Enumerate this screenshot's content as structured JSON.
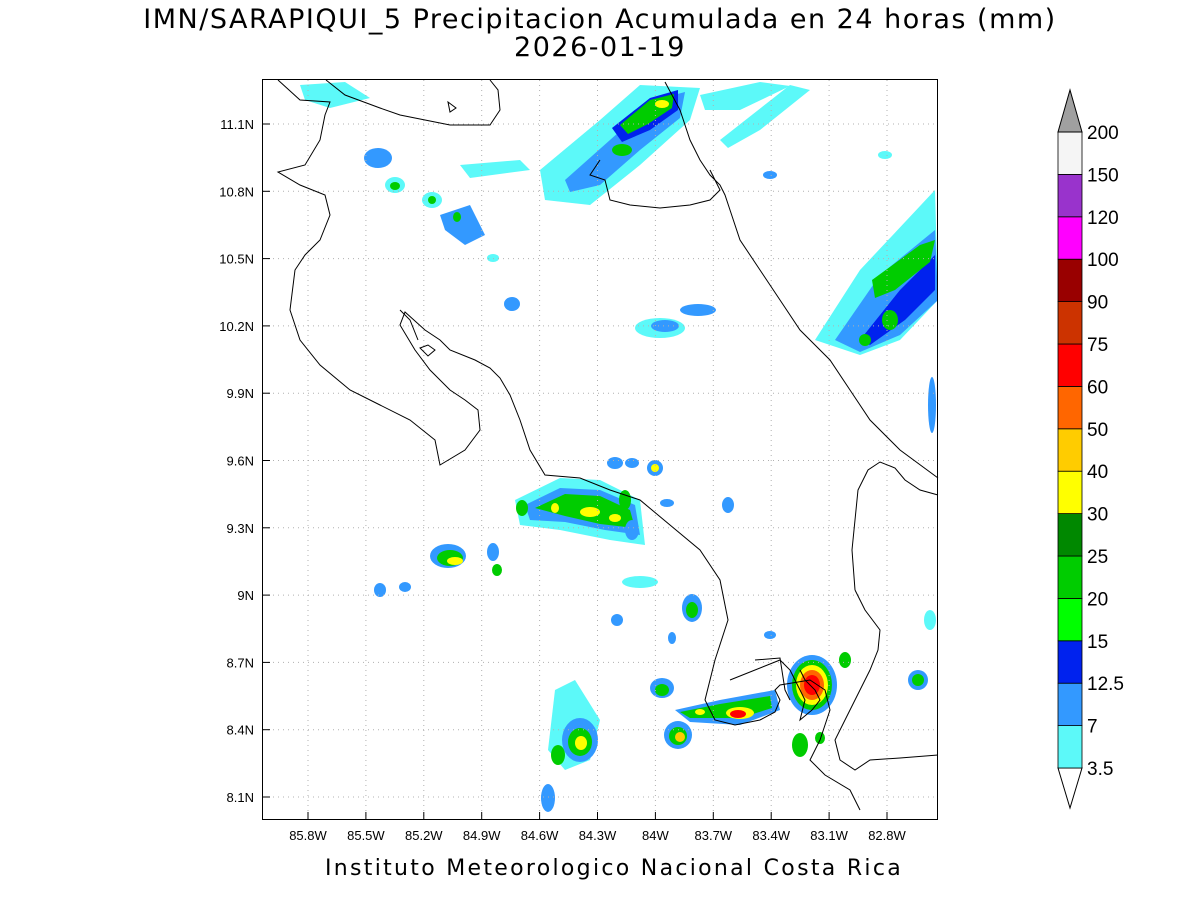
{
  "title": {
    "line1": "IMN/SARAPIQUI_5 Precipitacion Acumulada en 24 horas (mm)",
    "line2": "2026-01-19"
  },
  "footer": "Instituto Meteorologico Nacional Costa Rica",
  "axes": {
    "lon_ticks": [
      "85.8W",
      "85.5W",
      "85.2W",
      "84.9W",
      "84.6W",
      "84.3W",
      "84W",
      "83.7W",
      "83.4W",
      "83.1W",
      "82.8W"
    ],
    "lat_ticks": [
      "11.1N",
      "10.8N",
      "10.5N",
      "10.2N",
      "9.9N",
      "9.6N",
      "9.3N",
      "9N",
      "8.7N",
      "8.4N",
      "8.1N"
    ]
  },
  "colorbar": {
    "levels": [
      "3.5",
      "7",
      "12.5",
      "15",
      "20",
      "25",
      "30",
      "40",
      "50",
      "60",
      "75",
      "90",
      "100",
      "120",
      "150",
      "200"
    ],
    "colors": [
      "#5cf9f9",
      "#3399ff",
      "#0022ee",
      "#00ff00",
      "#00cc00",
      "#008800",
      "#ffff00",
      "#ffcc00",
      "#ff6600",
      "#ff0000",
      "#cc3300",
      "#990000",
      "#ff00ff",
      "#9933cc",
      "#f5f5f5",
      "#a0a0a0"
    ]
  }
}
